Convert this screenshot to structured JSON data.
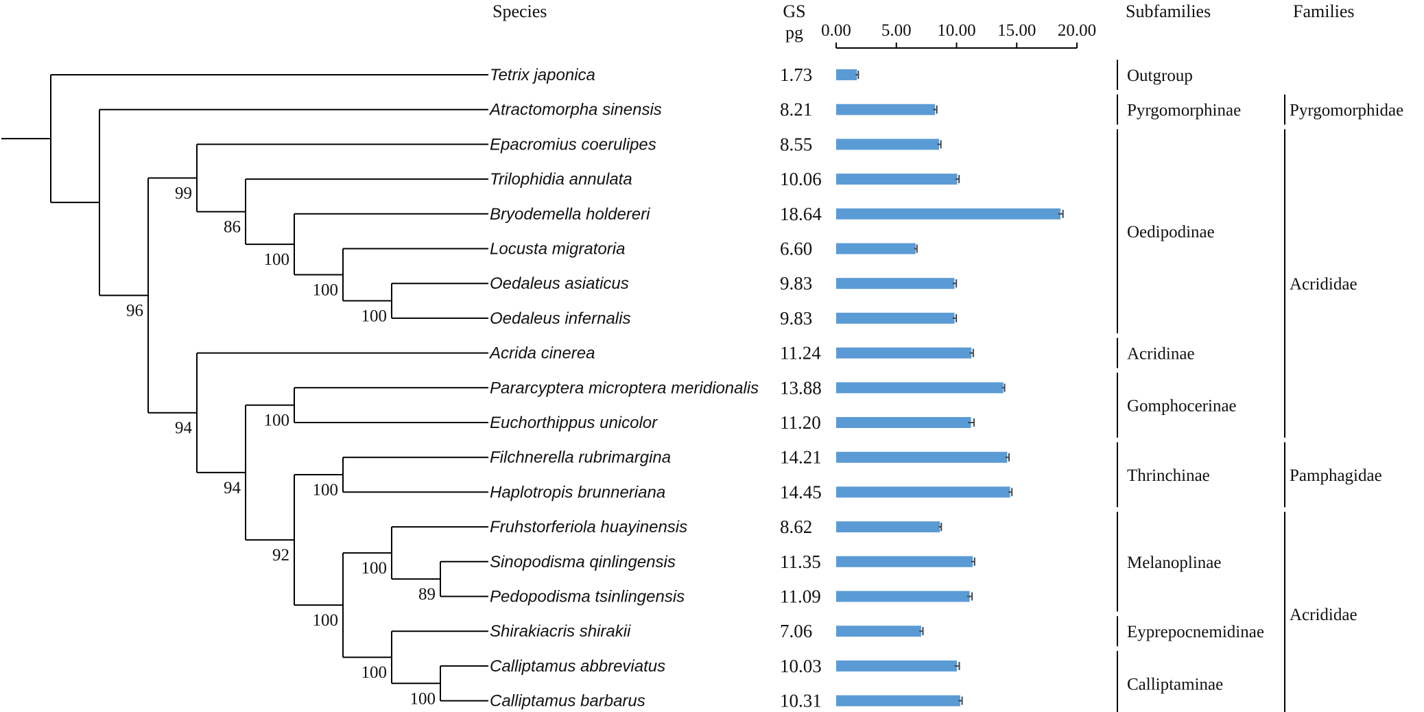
{
  "chart_data": {
    "type": "bar",
    "orientation": "horizontal",
    "headers": {
      "species": "Species",
      "gs_line1": "GS",
      "gs_line2": "pg",
      "subfamilies": "Subfamilies",
      "families": "Families"
    },
    "xlim": [
      0,
      20
    ],
    "ticks": [
      "0.00",
      "5.00",
      "10.00",
      "15.00",
      "20.00"
    ],
    "tick_values": [
      0,
      5,
      10,
      15,
      20
    ],
    "species": [
      {
        "name": "Tetrix japonica",
        "gs_label": "1.73",
        "value": 1.73,
        "err": 0.05
      },
      {
        "name": "Atractomorpha sinensis",
        "gs_label": "8.21",
        "value": 8.21,
        "err": 0.15
      },
      {
        "name": "Epacromius coerulipes",
        "gs_label": "8.55",
        "value": 8.55,
        "err": 0.15
      },
      {
        "name": "Trilophidia annulata",
        "gs_label": "10.06",
        "value": 10.06,
        "err": 0.15
      },
      {
        "name": "Bryodemella holdereri",
        "gs_label": "18.64",
        "value": 18.64,
        "err": 0.2
      },
      {
        "name": "Locusta migratoria",
        "gs_label": "6.60",
        "value": 6.6,
        "err": 0.1
      },
      {
        "name": "Oedaleus asiaticus",
        "gs_label": "9.83",
        "value": 9.83,
        "err": 0.15
      },
      {
        "name": "Oedaleus infernalis",
        "gs_label": "9.83",
        "value": 9.83,
        "err": 0.15
      },
      {
        "name": "Acrida cinerea",
        "gs_label": "11.24",
        "value": 11.24,
        "err": 0.15
      },
      {
        "name": "Pararcyptera microptera meridionalis",
        "gs_label": "13.88",
        "value": 13.88,
        "err": 0.1
      },
      {
        "name": "Euchorthippus unicolor",
        "gs_label": "11.20",
        "value": 11.2,
        "err": 0.25
      },
      {
        "name": "Filchnerella rubrimargina",
        "gs_label": "14.21",
        "value": 14.21,
        "err": 0.15
      },
      {
        "name": "Haplotropis brunneriana",
        "gs_label": "14.45",
        "value": 14.45,
        "err": 0.15
      },
      {
        "name": "Fruhstorferiola huayinensis",
        "gs_label": "8.62",
        "value": 8.62,
        "err": 0.1
      },
      {
        "name": "Sinopodisma qinlingensis",
        "gs_label": "11.35",
        "value": 11.35,
        "err": 0.15
      },
      {
        "name": "Pedopodisma tsinlingensis",
        "gs_label": "11.09",
        "value": 11.09,
        "err": 0.2
      },
      {
        "name": "Shirakiacris shirakii",
        "gs_label": "7.06",
        "value": 7.06,
        "err": 0.15
      },
      {
        "name": "Calliptamus abbreviatus",
        "gs_label": "10.03",
        "value": 10.03,
        "err": 0.2
      },
      {
        "name": "Calliptamus barbarus",
        "gs_label": "10.31",
        "value": 10.31,
        "err": 0.15
      }
    ],
    "subfamilies": [
      {
        "name": "Outgroup",
        "first": 0,
        "last": 0
      },
      {
        "name": "Pyrgomorphinae",
        "first": 1,
        "last": 1
      },
      {
        "name": "Oedipodinae",
        "first": 2,
        "last": 7
      },
      {
        "name": "Acridinae",
        "first": 8,
        "last": 8
      },
      {
        "name": "Gomphocerinae",
        "first": 9,
        "last": 10
      },
      {
        "name": "Thrinchinae",
        "first": 11,
        "last": 12
      },
      {
        "name": "Melanoplinae",
        "first": 13,
        "last": 15
      },
      {
        "name": "Eyprepocnemidinae",
        "first": 16,
        "last": 16
      },
      {
        "name": "Calliptaminae",
        "first": 17,
        "last": 18
      }
    ],
    "families": [
      {
        "name": "Pyrgomorphidae",
        "first": 1,
        "last": 1
      },
      {
        "name": "Acrididae",
        "first": 2,
        "last": 10
      },
      {
        "name": "Pamphagidae",
        "first": 11,
        "last": 12
      },
      {
        "name": "Acrididae",
        "first": 13,
        "last": 18
      }
    ],
    "tree": {
      "children": [
        {
          "leaf": 0
        },
        {
          "children": [
            {
              "leaf": 1
            },
            {
              "support": "96",
              "children": [
                {
                  "support": "99",
                  "children": [
                    {
                      "leaf": 2
                    },
                    {
                      "support": "86",
                      "children": [
                        {
                          "leaf": 3
                        },
                        {
                          "support": "100",
                          "children": [
                            {
                              "leaf": 4
                            },
                            {
                              "support": "100",
                              "children": [
                                {
                                  "leaf": 5
                                },
                                {
                                  "support": "100",
                                  "children": [
                                    {
                                      "leaf": 6
                                    },
                                    {
                                      "leaf": 7
                                    }
                                  ]
                                }
                              ]
                            }
                          ]
                        }
                      ]
                    }
                  ]
                },
                {
                  "support": "94",
                  "children": [
                    {
                      "leaf": 8
                    },
                    {
                      "support": "94",
                      "children": [
                        {
                          "support": "100",
                          "children": [
                            {
                              "leaf": 9
                            },
                            {
                              "leaf": 10
                            }
                          ]
                        },
                        {
                          "support": "92",
                          "children": [
                            {
                              "support": "100",
                              "children": [
                                {
                                  "leaf": 11
                                },
                                {
                                  "leaf": 12
                                }
                              ]
                            },
                            {
                              "support": "100",
                              "children": [
                                {
                                  "support": "100",
                                  "children": [
                                    {
                                      "leaf": 13
                                    },
                                    {
                                      "support": "89",
                                      "children": [
                                        {
                                          "leaf": 14
                                        },
                                        {
                                          "leaf": 15
                                        }
                                      ]
                                    }
                                  ]
                                },
                                {
                                  "support": "100",
                                  "children": [
                                    {
                                      "leaf": 16
                                    },
                                    {
                                      "support": "100",
                                      "children": [
                                        {
                                          "leaf": 17
                                        },
                                        {
                                          "leaf": 18
                                        }
                                      ]
                                    }
                                  ]
                                }
                              ]
                            }
                          ]
                        }
                      ]
                    }
                  ]
                }
              ]
            }
          ]
        }
      ]
    }
  }
}
